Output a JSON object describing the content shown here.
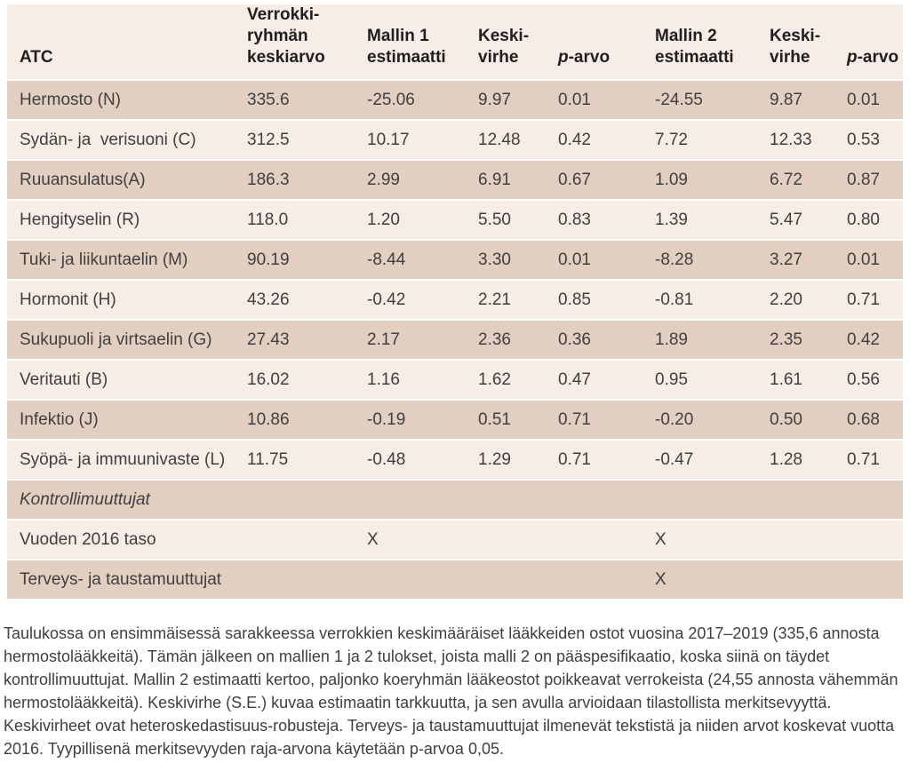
{
  "table": {
    "columns": [
      {
        "id": "atc",
        "lines": [
          "ATC"
        ],
        "italic_lead": false
      },
      {
        "id": "control-mean",
        "lines": [
          "Verrokki-",
          "ryhmän",
          "keskiarvo"
        ],
        "italic_lead": false
      },
      {
        "id": "model1-estimate",
        "lines": [
          "Mallin 1",
          "estimaatti"
        ],
        "italic_lead": false
      },
      {
        "id": "std-error-1",
        "lines": [
          "Keski-",
          "virhe"
        ],
        "italic_lead": false
      },
      {
        "id": "p-value-1",
        "lines": [
          "p-arvo"
        ],
        "italic_lead": true
      },
      {
        "id": "model2-estimate",
        "lines": [
          "Mallin 2",
          "estimaatti"
        ],
        "italic_lead": false
      },
      {
        "id": "std-error-2",
        "lines": [
          "Keski-",
          "virhe"
        ],
        "italic_lead": false
      },
      {
        "id": "p-value-2",
        "lines": [
          "p-arvo"
        ],
        "italic_lead": true
      }
    ],
    "rows": [
      {
        "label": "Hermosto (N)",
        "italic": false,
        "values": [
          "335.6",
          "-25.06",
          "9.97",
          "0.01",
          "-24.55",
          "9.87",
          "0.01"
        ]
      },
      {
        "label": "Sydän- ja  verisuoni (C)",
        "italic": false,
        "values": [
          "312.5",
          "10.17",
          "12.48",
          "0.42",
          "7.72",
          "12.33",
          "0.53"
        ]
      },
      {
        "label": "Ruuansulatus(A)",
        "italic": false,
        "values": [
          "186.3",
          "2.99",
          "6.91",
          "0.67",
          "1.09",
          "6.72",
          "0.87"
        ]
      },
      {
        "label": "Hengityselin (R)",
        "italic": false,
        "values": [
          "118.0",
          "1.20",
          "5.50",
          "0.83",
          "1.39",
          "5.47",
          "0.80"
        ]
      },
      {
        "label": "Tuki- ja liikuntaelin (M)",
        "italic": false,
        "values": [
          "90.19",
          "-8.44",
          "3.30",
          "0.01",
          "-8.28",
          "3.27",
          "0.01"
        ]
      },
      {
        "label": "Hormonit (H)",
        "italic": false,
        "values": [
          "43.26",
          "-0.42",
          "2.21",
          "0.85",
          "-0.81",
          "2.20",
          "0.71"
        ]
      },
      {
        "label": "Sukupuoli ja virtsaelin (G)",
        "italic": false,
        "values": [
          "27.43",
          "2.17",
          "2.36",
          "0.36",
          "1.89",
          "2.35",
          "0.42"
        ]
      },
      {
        "label": "Veritauti (B)",
        "italic": false,
        "values": [
          "16.02",
          "1.16",
          "1.62",
          "0.47",
          "0.95",
          "1.61",
          "0.56"
        ]
      },
      {
        "label": "Infektio (J)",
        "italic": false,
        "values": [
          "10.86",
          "-0.19",
          "0.51",
          "0.71",
          "-0.20",
          "0.50",
          "0.68"
        ]
      },
      {
        "label": "Syöpä- ja immuunivaste (L)",
        "italic": false,
        "values": [
          "11.75",
          "-0.48",
          "1.29",
          "0.71",
          "-0.47",
          "1.28",
          "0.71"
        ]
      },
      {
        "label": "Kontrollimuuttujat",
        "italic": true,
        "values": [
          "",
          "",
          "",
          "",
          "",
          "",
          ""
        ]
      },
      {
        "label": "Vuoden 2016 taso",
        "italic": false,
        "values": [
          "",
          "X",
          "",
          "",
          "X",
          "",
          ""
        ]
      },
      {
        "label": "Terveys- ja taustamuuttujat",
        "italic": false,
        "values": [
          "",
          "",
          "",
          "",
          "X",
          "",
          ""
        ]
      }
    ]
  },
  "caption": {
    "text": "Taulukossa on ensimmäisessä sarakkeessa verrokkien keskimääräiset lääkkeiden ostot vuosina 2017–2019 (335,6 annosta hermostolääkkeitä). Tämän jälkeen on mallien 1 ja 2 tulokset, joista malli 2 on pääspesifikaatio, koska siinä on täydet kontrollimuuttujat. Mallin 2 estimaatti kertoo, paljonko koeryhmän lääkeostot poikkeavat verrokeista (24,55 annosta vähemmän hermostolääkkeitä). Keskivirhe (S.E.) kuvaa estimaatin tarkkuutta, ja sen avulla arvioidaan tilastollista merkitsevyyttä. Keskivirheet ovat heteroskedastisuus-robusteja. Terveys- ja taustamuuttujat ilmenevät tekstistä ja niiden arvot koskevat vuotta 2016. Tyypillisenä merkitsevyyden raja-arvona käytetään p-arvoa 0,05."
  },
  "colors": {
    "row_dark": "#e2cfc1",
    "row_light": "#f7ece6",
    "header_bg": "#f7ece6",
    "text_header": "#1f1f1f",
    "text_body": "#3f3f3f"
  }
}
